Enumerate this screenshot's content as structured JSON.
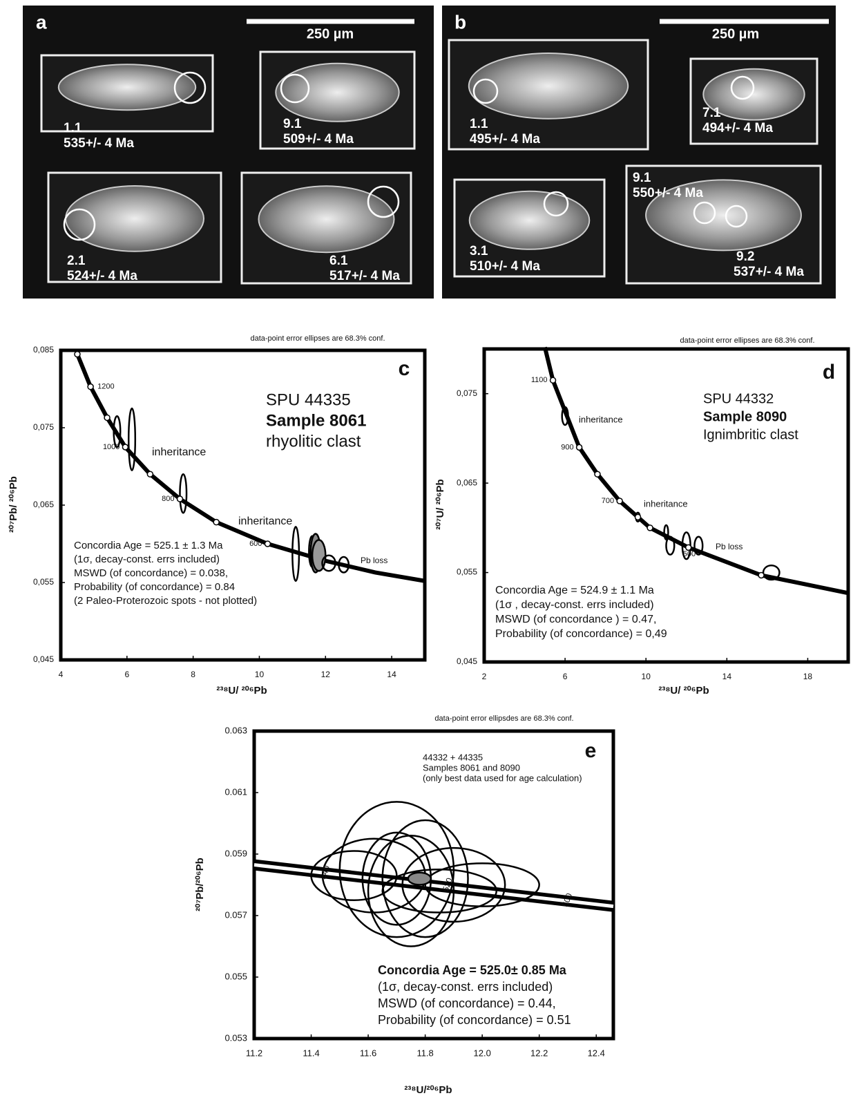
{
  "panels": [
    {
      "label": "a",
      "scale": "250 µm",
      "grains": [
        {
          "id": "1.1",
          "age": "535+/- 4 Ma"
        },
        {
          "id": "9.1",
          "age": "509+/- 4 Ma"
        },
        {
          "id": "2.1",
          "age": "524+/- 4 Ma"
        },
        {
          "id": "6.1",
          "age": "517+/- 4 Ma"
        }
      ]
    },
    {
      "label": "b",
      "scale": "250 µm",
      "grains": [
        {
          "id": "1.1",
          "age": "495+/- 4 Ma"
        },
        {
          "id": "7.1",
          "age": "494+/- 4 Ma"
        },
        {
          "id": "3.1",
          "age": "510+/- 4 Ma"
        },
        {
          "id": "9.1",
          "age": "550+/- 4 Ma"
        },
        {
          "id": "9.2",
          "age": "537+/- 4 Ma"
        }
      ]
    }
  ],
  "chart_data": [
    {
      "type": "scatter",
      "title": "c",
      "note": "data-point error ellipses are 68.3% conf.",
      "x_label": "²³⁸U/ ²⁰⁶Pb",
      "y_label": "²⁰⁷Pb/ ²⁰⁶Pb",
      "xlim": [
        4,
        15
      ],
      "ylim": [
        0.045,
        0.085
      ],
      "xticks": [
        4,
        6,
        8,
        10,
        12,
        14
      ],
      "yticks": [
        {
          "value": 0.045,
          "label": "0,045"
        },
        {
          "value": 0.055,
          "label": "0,055"
        },
        {
          "value": 0.065,
          "label": "0,065"
        },
        {
          "value": 0.075,
          "label": "0,075"
        },
        {
          "value": 0.085,
          "label": "0,085"
        }
      ],
      "sample_text": [
        "SPU 44335",
        "Sample 8061",
        "rhyolitic clast"
      ],
      "result_text": [
        "Concordia Age = 525.1 ± 1.3 Ma",
        "(1σ, decay-const. errs included)",
        "MSWD (of concordance) = 0.038,",
        "Probability (of concordance) = 0.84",
        "(2 Paleo-Proterozoic spots - not plotted)"
      ],
      "annotations": [
        "inheritance",
        "inheritance",
        "Pb loss"
      ],
      "concordia": {
        "x": [
          4.5,
          4.9,
          5.4,
          5.95,
          6.7,
          7.6,
          8.7,
          10.25,
          12,
          13.5,
          15
        ],
        "y": [
          0.0845,
          0.0803,
          0.0763,
          0.0725,
          0.069,
          0.0658,
          0.0628,
          0.06,
          0.0578,
          0.0563,
          0.0552
        ]
      },
      "age_markers": {
        "x": [
          4.5,
          4.9,
          5.4,
          5.95,
          6.7,
          7.6,
          8.7,
          10.25
        ],
        "y": [
          0.0845,
          0.0803,
          0.0763,
          0.0725,
          0.069,
          0.0658,
          0.0628,
          0.06
        ],
        "labels": [
          null,
          1200,
          null,
          1000,
          null,
          800,
          null,
          600
        ]
      },
      "ellipses": {
        "x": [
          5.7,
          6.15,
          7.7,
          11.1,
          11.6,
          11.7,
          11.8,
          12.1,
          12.55
        ],
        "y": [
          0.0745,
          0.0735,
          0.0665,
          0.0587,
          0.059,
          0.0588,
          0.0585,
          0.0575,
          0.0573
        ],
        "x_err": [
          0.1,
          0.1,
          0.1,
          0.1,
          0.1,
          0.15,
          0.2,
          0.2,
          0.15
        ],
        "y_err": [
          0.002,
          0.004,
          0.0025,
          0.0035,
          0.002,
          0.0025,
          0.002,
          0.001,
          0.001
        ],
        "fill": [
          "none",
          "none",
          "none",
          "none",
          "none",
          "#888",
          "#999",
          "none",
          "none"
        ]
      }
    },
    {
      "type": "scatter",
      "title": "d",
      "note": "data-point error ellipses are 68.3% conf.",
      "x_label": "²³⁸U/ ²⁰⁶Pb",
      "y_label": "²⁰⁷U/ ²⁰⁶Pb",
      "xlim": [
        2,
        20
      ],
      "ylim": [
        0.045,
        0.08
      ],
      "xticks": [
        2,
        6,
        10,
        14,
        18
      ],
      "yticks": [
        {
          "value": 0.045,
          "label": "0,045"
        },
        {
          "value": 0.055,
          "label": "0,055"
        },
        {
          "value": 0.065,
          "label": "0,065"
        },
        {
          "value": 0.075,
          "label": "0,075"
        }
      ],
      "sample_text": [
        "SPU 44332",
        "Sample 8090",
        "Ignimbritic clast"
      ],
      "result_text": [
        "Concordia Age = 524.9 ± 1.1 Ma",
        "(1σ , decay-const. errs included)",
        "MSWD (of concordance ) = 0.47,",
        "Probability (of concordance) = 0,49"
      ],
      "annotations": [
        "inheritance",
        "inheritance",
        "Pb loss"
      ],
      "concordia": {
        "x": [
          5,
          5.4,
          6.7,
          7.6,
          8.7,
          9.6,
          10.2,
          12.1,
          15.7,
          20
        ],
        "y": [
          0.0802,
          0.0765,
          0.069,
          0.066,
          0.063,
          0.0612,
          0.06,
          0.0578,
          0.0547,
          0.0527
        ]
      },
      "age_markers": {
        "x": [
          5.4,
          6.7,
          7.6,
          8.7,
          9.6,
          10.2,
          12.1,
          15.7
        ],
        "y": [
          0.0765,
          0.069,
          0.066,
          0.063,
          0.0612,
          0.06,
          0.0578,
          0.0547
        ],
        "labels": [
          1100,
          900,
          null,
          700,
          null,
          null,
          500,
          null
        ]
      },
      "ellipses": {
        "x": [
          6,
          9.6,
          11,
          11.2,
          12,
          12.6,
          16.2
        ],
        "y": [
          0.0725,
          0.0612,
          0.0595,
          0.058,
          0.058,
          0.058,
          0.055
        ],
        "x_err": [
          0.15,
          0.1,
          0.1,
          0.2,
          0.2,
          0.2,
          0.4
        ],
        "y_err": [
          0.001,
          0.0005,
          0.0008,
          0.001,
          0.0015,
          0.001,
          0.0008
        ],
        "fill": [
          "none",
          "none",
          "none",
          "none",
          "none",
          "none",
          "none"
        ]
      }
    },
    {
      "type": "scatter",
      "title": "e",
      "note": "data-point error ellipsdes are 68.3% conf.",
      "x_label": "²³⁸U/²⁰⁶Pb",
      "y_label": "²⁰⁷Pb/²⁰⁶Pb",
      "xlim": [
        11.2,
        12.46
      ],
      "ylim": [
        0.053,
        0.063
      ],
      "xticks": [
        11.2,
        11.4,
        11.6,
        11.8,
        {
          "value": 12,
          "label": "12.0"
        },
        12.2,
        12.4
      ],
      "yticks": [
        0.053,
        0.055,
        0.057,
        0.059,
        0.061,
        0.063
      ],
      "sample_text": [
        "44332 + 44335",
        "Samples 8061 and 8090",
        "(only best data used for age calculation)"
      ],
      "result_text": [
        "Concordia Age = 525.0±   0.85 Ma",
        "(1σ, decay-const. errs included)",
        "MSWD (of concordance) = 0.44,",
        "Probability (of concordance) = 0.51"
      ],
      "annotations": [],
      "band": true,
      "concordia": {
        "x": [
          11.2,
          12.46
        ],
        "y": [
          0.05865,
          0.0573
        ]
      },
      "age_markers": {
        "x": [
          11.45,
          11.88,
          12.3
        ],
        "y": [
          0.0584,
          0.058,
          0.0575
        ],
        "labels": [
          540,
          520,
          500
        ]
      },
      "ellipses": {
        "x": [
          11.7,
          11.8,
          11.75,
          11.62,
          11.9,
          11.55,
          12.0,
          11.85,
          11.7,
          11.78
        ],
        "y": [
          0.0585,
          0.0582,
          0.0578,
          0.0583,
          0.058,
          0.0583,
          0.058,
          0.0578,
          0.0582,
          0.0582
        ],
        "x_err": [
          0.2,
          0.15,
          0.15,
          0.18,
          0.18,
          0.15,
          0.2,
          0.2,
          0.12,
          0.04
        ],
        "y_err": [
          0.0022,
          0.0019,
          0.0018,
          0.0012,
          0.0012,
          0.0008,
          0.0007,
          0.0007,
          0.0015,
          0.0002
        ],
        "fill": [
          "none",
          "none",
          "none",
          "none",
          "none",
          "none",
          "none",
          "none",
          "none",
          "#888"
        ]
      }
    }
  ]
}
